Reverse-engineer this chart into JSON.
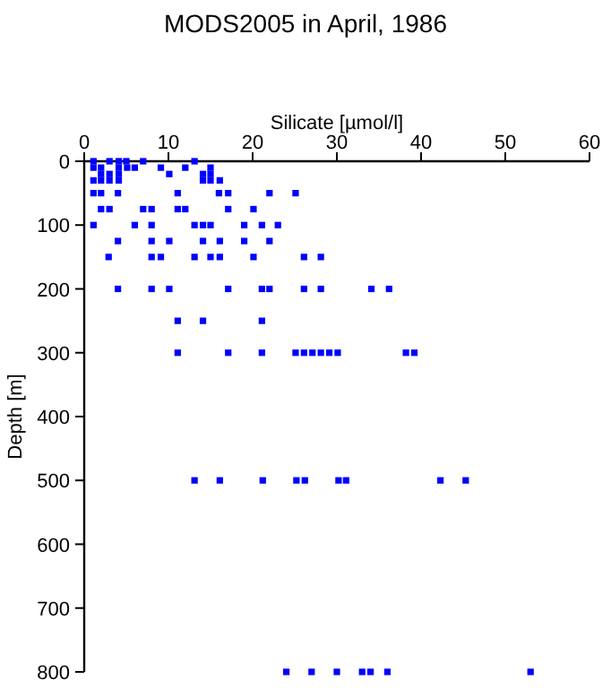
{
  "chart_data": {
    "type": "scatter",
    "title": "MODS2005 in April, 1986",
    "xlabel": "Silicate [µmol/l]",
    "ylabel": "Depth [m]",
    "xlim": [
      0,
      60
    ],
    "xticks": [
      0,
      10,
      20,
      30,
      40,
      50,
      60
    ],
    "ylim": [
      800,
      0
    ],
    "yticks": [
      0,
      100,
      200,
      300,
      400,
      500,
      600,
      700,
      800
    ],
    "marker": "square",
    "grid": false,
    "series": [
      {
        "color": "#0000ff",
        "x": [
          1.1,
          3,
          4.1,
          5,
          7,
          13.1,
          1.1,
          2,
          4.1,
          5.1,
          6,
          9.1,
          12,
          15,
          2,
          3,
          4.1,
          10.1,
          14.1,
          15,
          1.1,
          2,
          3,
          4.1,
          14.1,
          15,
          16.1,
          1.1,
          2,
          4,
          11.1,
          16,
          17.1,
          22,
          25.1,
          2,
          3,
          7,
          8,
          11.1,
          12,
          17.1,
          20.1,
          1.1,
          6,
          8,
          13.1,
          14.1,
          15,
          19,
          21.1,
          23,
          4,
          8,
          10.1,
          14.1,
          16.1,
          19,
          22,
          2.9,
          8,
          9.1,
          13.1,
          15,
          16.1,
          20.1,
          26.1,
          28.1,
          4,
          8,
          10.1,
          17.1,
          21.1,
          22,
          26.1,
          28.1,
          34.1,
          36.2,
          11.1,
          14.1,
          21.1,
          11.1,
          17.1,
          21.1,
          25.1,
          26.1,
          27.1,
          28.1,
          29.1,
          30.1,
          38.2,
          39.2,
          13.1,
          16.1,
          21.2,
          25.2,
          26.2,
          30.2,
          31.1,
          42.3,
          45.3,
          24,
          27,
          30,
          33,
          34,
          36,
          53
        ],
        "values": [
          0,
          0,
          0,
          0,
          0,
          0,
          10,
          10,
          10,
          10,
          10,
          10,
          10,
          10,
          20,
          20,
          20,
          20,
          20,
          20,
          30,
          30,
          30,
          30,
          30,
          30,
          30,
          50,
          50,
          50,
          50,
          50,
          50,
          50,
          50,
          75,
          75,
          75,
          75,
          75,
          75,
          75,
          75,
          100,
          100,
          100,
          100,
          100,
          100,
          100,
          100,
          100,
          125,
          125,
          125,
          125,
          125,
          125,
          125,
          150,
          150,
          150,
          150,
          150,
          150,
          150,
          150,
          150,
          200,
          200,
          200,
          200,
          200,
          200,
          200,
          200,
          200,
          200,
          250,
          250,
          250,
          300,
          300,
          300,
          300,
          300,
          300,
          300,
          300,
          300,
          300,
          300,
          500,
          500,
          500,
          500,
          500,
          500,
          500,
          500,
          500,
          800,
          800,
          800,
          800,
          800,
          800,
          800
        ]
      }
    ]
  }
}
